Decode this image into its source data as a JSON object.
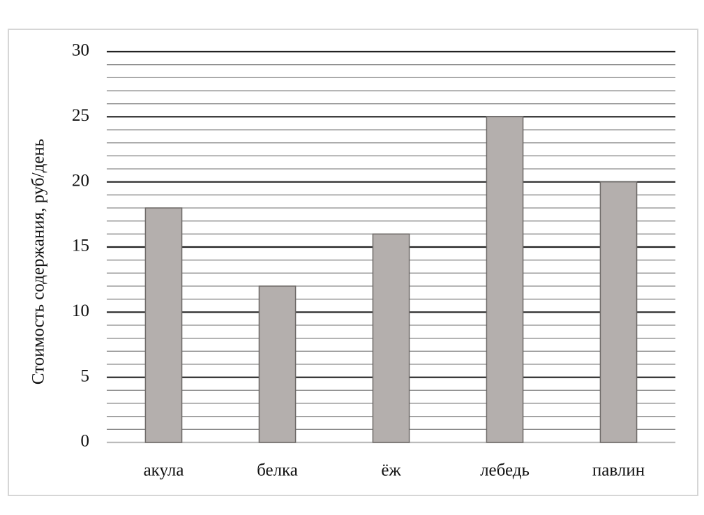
{
  "chart_data": {
    "type": "bar",
    "y_label": "Стоимость содержания, руб/день",
    "categories": [
      "акула",
      "белка",
      "ёж",
      "лебедь",
      "павлин"
    ],
    "values": [
      18,
      12,
      16,
      25,
      20
    ],
    "color": "#b4afad",
    "ylim": [
      0,
      30
    ],
    "yticks": [
      0,
      5,
      10,
      15,
      20,
      25,
      30
    ],
    "minor_yticks": [
      1,
      2,
      3,
      4,
      6,
      7,
      8,
      9,
      11,
      12,
      13,
      14,
      16,
      17,
      18,
      19,
      21,
      22,
      23,
      24,
      26,
      27,
      28,
      29
    ],
    "grid": true
  }
}
